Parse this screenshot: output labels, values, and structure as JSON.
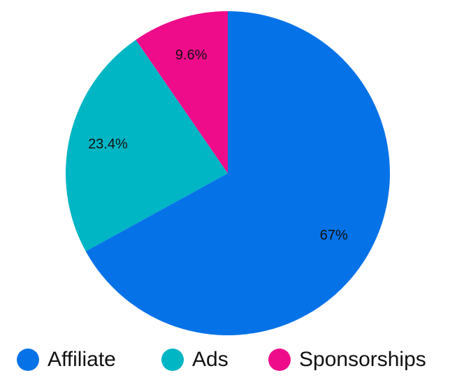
{
  "chart_data": {
    "type": "pie",
    "categories": [
      "Affiliate",
      "Ads",
      "Sponsorships"
    ],
    "values": [
      67,
      23.4,
      9.6
    ],
    "value_labels": [
      "67%",
      "23.4%",
      "9.6%"
    ],
    "colors": [
      "#0672e8",
      "#00b5c4",
      "#ef0c8a"
    ],
    "legend": "bottom"
  }
}
